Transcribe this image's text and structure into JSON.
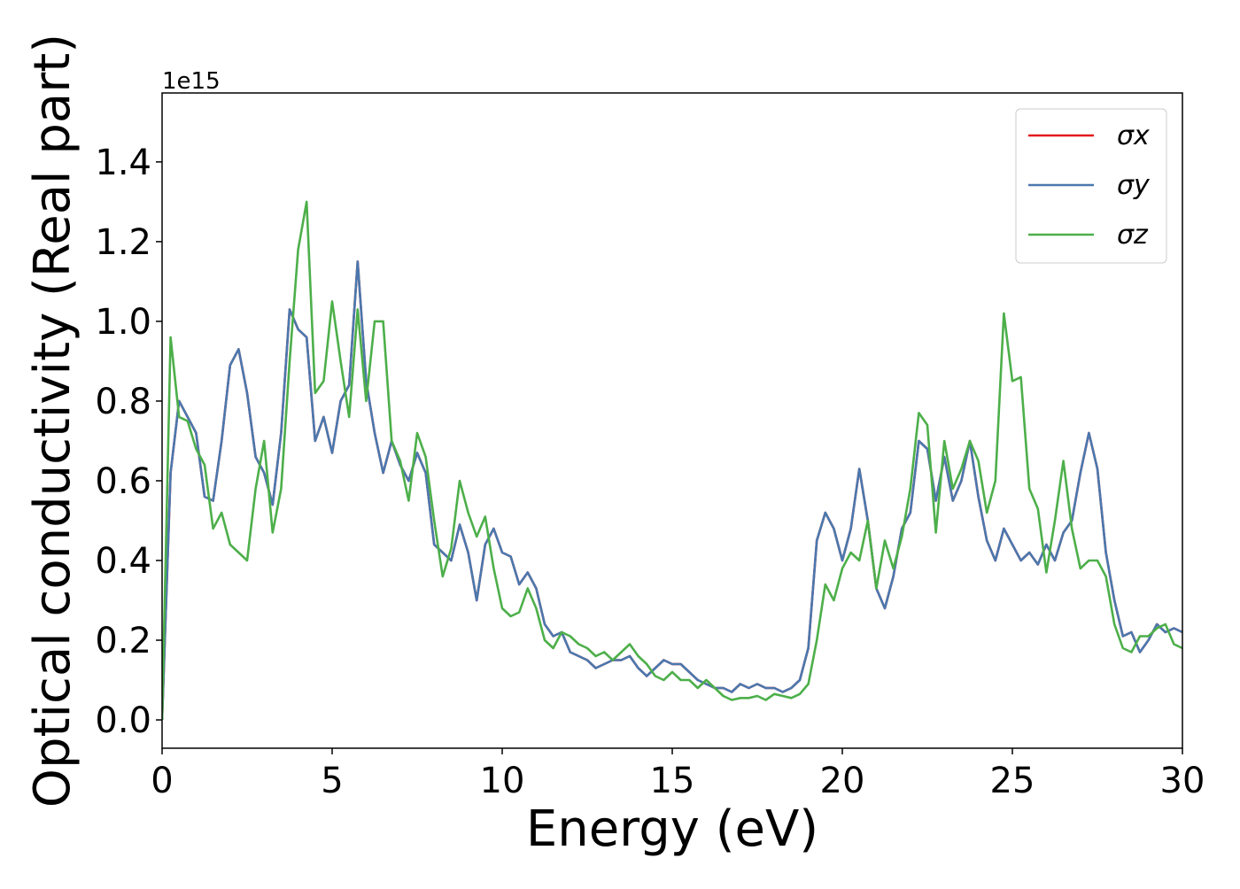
{
  "chart_data": {
    "type": "line",
    "xlabel": "Energy (eV)",
    "ylabel": "Optical conductivity (Real part)",
    "y_offset_label": "1e15",
    "x": [
      0,
      0.25,
      0.5,
      0.75,
      1,
      1.25,
      1.5,
      1.75,
      2,
      2.25,
      2.5,
      2.75,
      3,
      3.25,
      3.5,
      3.75,
      4,
      4.25,
      4.5,
      4.75,
      5,
      5.25,
      5.5,
      5.75,
      6,
      6.25,
      6.5,
      6.75,
      7,
      7.25,
      7.5,
      7.75,
      8,
      8.25,
      8.5,
      8.75,
      9,
      9.25,
      9.5,
      9.75,
      10,
      10.25,
      10.5,
      10.75,
      11,
      11.25,
      11.5,
      11.75,
      12,
      12.25,
      12.5,
      12.75,
      13,
      13.25,
      13.5,
      13.75,
      14,
      14.25,
      14.5,
      14.75,
      15,
      15.25,
      15.5,
      15.75,
      16,
      16.25,
      16.5,
      16.75,
      17,
      17.25,
      17.5,
      17.75,
      18,
      18.25,
      18.5,
      18.75,
      19,
      19.25,
      19.5,
      19.75,
      20,
      20.25,
      20.5,
      20.75,
      21,
      21.25,
      21.5,
      21.75,
      22,
      22.25,
      22.5,
      22.75,
      23,
      23.25,
      23.5,
      23.75,
      24,
      24.25,
      24.5,
      24.75,
      25,
      25.25,
      25.5,
      25.75,
      26,
      26.25,
      26.5,
      26.75,
      27,
      27.25,
      27.5,
      27.75,
      28,
      28.25,
      28.5,
      28.75,
      29,
      29.25,
      29.5,
      29.75,
      30
    ],
    "series": [
      {
        "name": "σx",
        "color": "#e41a1c",
        "values": [
          0,
          0.62,
          0.8,
          0.76,
          0.72,
          0.56,
          0.55,
          0.7,
          0.89,
          0.93,
          0.82,
          0.66,
          0.62,
          0.54,
          0.72,
          1.03,
          0.98,
          0.96,
          0.7,
          0.76,
          0.67,
          0.8,
          0.84,
          1.15,
          0.85,
          0.72,
          0.62,
          0.7,
          0.64,
          0.6,
          0.67,
          0.62,
          0.44,
          0.42,
          0.4,
          0.49,
          0.42,
          0.3,
          0.44,
          0.48,
          0.42,
          0.41,
          0.34,
          0.37,
          0.33,
          0.24,
          0.21,
          0.22,
          0.17,
          0.16,
          0.15,
          0.13,
          0.14,
          0.15,
          0.15,
          0.16,
          0.13,
          0.11,
          0.13,
          0.15,
          0.14,
          0.14,
          0.12,
          0.1,
          0.09,
          0.08,
          0.08,
          0.07,
          0.09,
          0.08,
          0.09,
          0.08,
          0.08,
          0.07,
          0.08,
          0.1,
          0.18,
          0.45,
          0.52,
          0.48,
          0.4,
          0.48,
          0.63,
          0.5,
          0.33,
          0.28,
          0.36,
          0.48,
          0.52,
          0.7,
          0.68,
          0.55,
          0.66,
          0.55,
          0.6,
          0.7,
          0.56,
          0.45,
          0.4,
          0.48,
          0.44,
          0.4,
          0.42,
          0.39,
          0.44,
          0.4,
          0.47,
          0.5,
          0.62,
          0.72,
          0.63,
          0.42,
          0.3,
          0.21,
          0.22,
          0.17,
          0.2,
          0.24,
          0.22,
          0.23,
          0.22
        ]
      },
      {
        "name": "σy",
        "color": "#4a78ae",
        "values": [
          0,
          0.62,
          0.8,
          0.76,
          0.72,
          0.56,
          0.55,
          0.7,
          0.89,
          0.93,
          0.82,
          0.66,
          0.62,
          0.54,
          0.72,
          1.03,
          0.98,
          0.96,
          0.7,
          0.76,
          0.67,
          0.8,
          0.84,
          1.15,
          0.85,
          0.72,
          0.62,
          0.7,
          0.64,
          0.6,
          0.67,
          0.62,
          0.44,
          0.42,
          0.4,
          0.49,
          0.42,
          0.3,
          0.44,
          0.48,
          0.42,
          0.41,
          0.34,
          0.37,
          0.33,
          0.24,
          0.21,
          0.22,
          0.17,
          0.16,
          0.15,
          0.13,
          0.14,
          0.15,
          0.15,
          0.16,
          0.13,
          0.11,
          0.13,
          0.15,
          0.14,
          0.14,
          0.12,
          0.1,
          0.09,
          0.08,
          0.08,
          0.07,
          0.09,
          0.08,
          0.09,
          0.08,
          0.08,
          0.07,
          0.08,
          0.1,
          0.18,
          0.45,
          0.52,
          0.48,
          0.4,
          0.48,
          0.63,
          0.5,
          0.33,
          0.28,
          0.36,
          0.48,
          0.52,
          0.7,
          0.68,
          0.55,
          0.66,
          0.55,
          0.6,
          0.7,
          0.56,
          0.45,
          0.4,
          0.48,
          0.44,
          0.4,
          0.42,
          0.39,
          0.44,
          0.4,
          0.47,
          0.5,
          0.62,
          0.72,
          0.63,
          0.42,
          0.3,
          0.21,
          0.22,
          0.17,
          0.2,
          0.24,
          0.22,
          0.23,
          0.22
        ]
      },
      {
        "name": "σz",
        "color": "#4daf4a",
        "values": [
          0,
          0.96,
          0.76,
          0.75,
          0.68,
          0.64,
          0.48,
          0.52,
          0.44,
          0.42,
          0.4,
          0.58,
          0.7,
          0.47,
          0.58,
          0.9,
          1.18,
          1.3,
          0.82,
          0.85,
          1.05,
          0.9,
          0.76,
          1.03,
          0.8,
          1.0,
          1.0,
          0.7,
          0.65,
          0.55,
          0.72,
          0.66,
          0.5,
          0.36,
          0.43,
          0.6,
          0.52,
          0.46,
          0.51,
          0.38,
          0.28,
          0.26,
          0.27,
          0.33,
          0.28,
          0.2,
          0.18,
          0.22,
          0.21,
          0.19,
          0.18,
          0.16,
          0.17,
          0.15,
          0.17,
          0.19,
          0.16,
          0.14,
          0.11,
          0.1,
          0.12,
          0.1,
          0.1,
          0.08,
          0.1,
          0.08,
          0.06,
          0.05,
          0.055,
          0.055,
          0.06,
          0.05,
          0.065,
          0.06,
          0.055,
          0.065,
          0.09,
          0.2,
          0.34,
          0.3,
          0.38,
          0.42,
          0.4,
          0.5,
          0.33,
          0.45,
          0.38,
          0.46,
          0.58,
          0.77,
          0.74,
          0.47,
          0.7,
          0.58,
          0.63,
          0.7,
          0.65,
          0.52,
          0.6,
          1.02,
          0.85,
          0.86,
          0.58,
          0.53,
          0.37,
          0.5,
          0.65,
          0.48,
          0.38,
          0.4,
          0.4,
          0.36,
          0.24,
          0.18,
          0.17,
          0.21,
          0.21,
          0.23,
          0.24,
          0.19,
          0.18
        ]
      }
    ],
    "xlim": [
      0,
      30
    ],
    "xticks": [
      0,
      5,
      10,
      15,
      20,
      25,
      30
    ],
    "ylim": [
      -0.071,
      1.573
    ],
    "yticks": [
      {
        "value": 0,
        "label": "0.0"
      },
      0.2,
      0.4,
      0.6,
      0.8,
      {
        "value": 1,
        "label": "1.0"
      },
      1.2,
      1.4
    ],
    "grid": false,
    "legend": "upper right"
  }
}
